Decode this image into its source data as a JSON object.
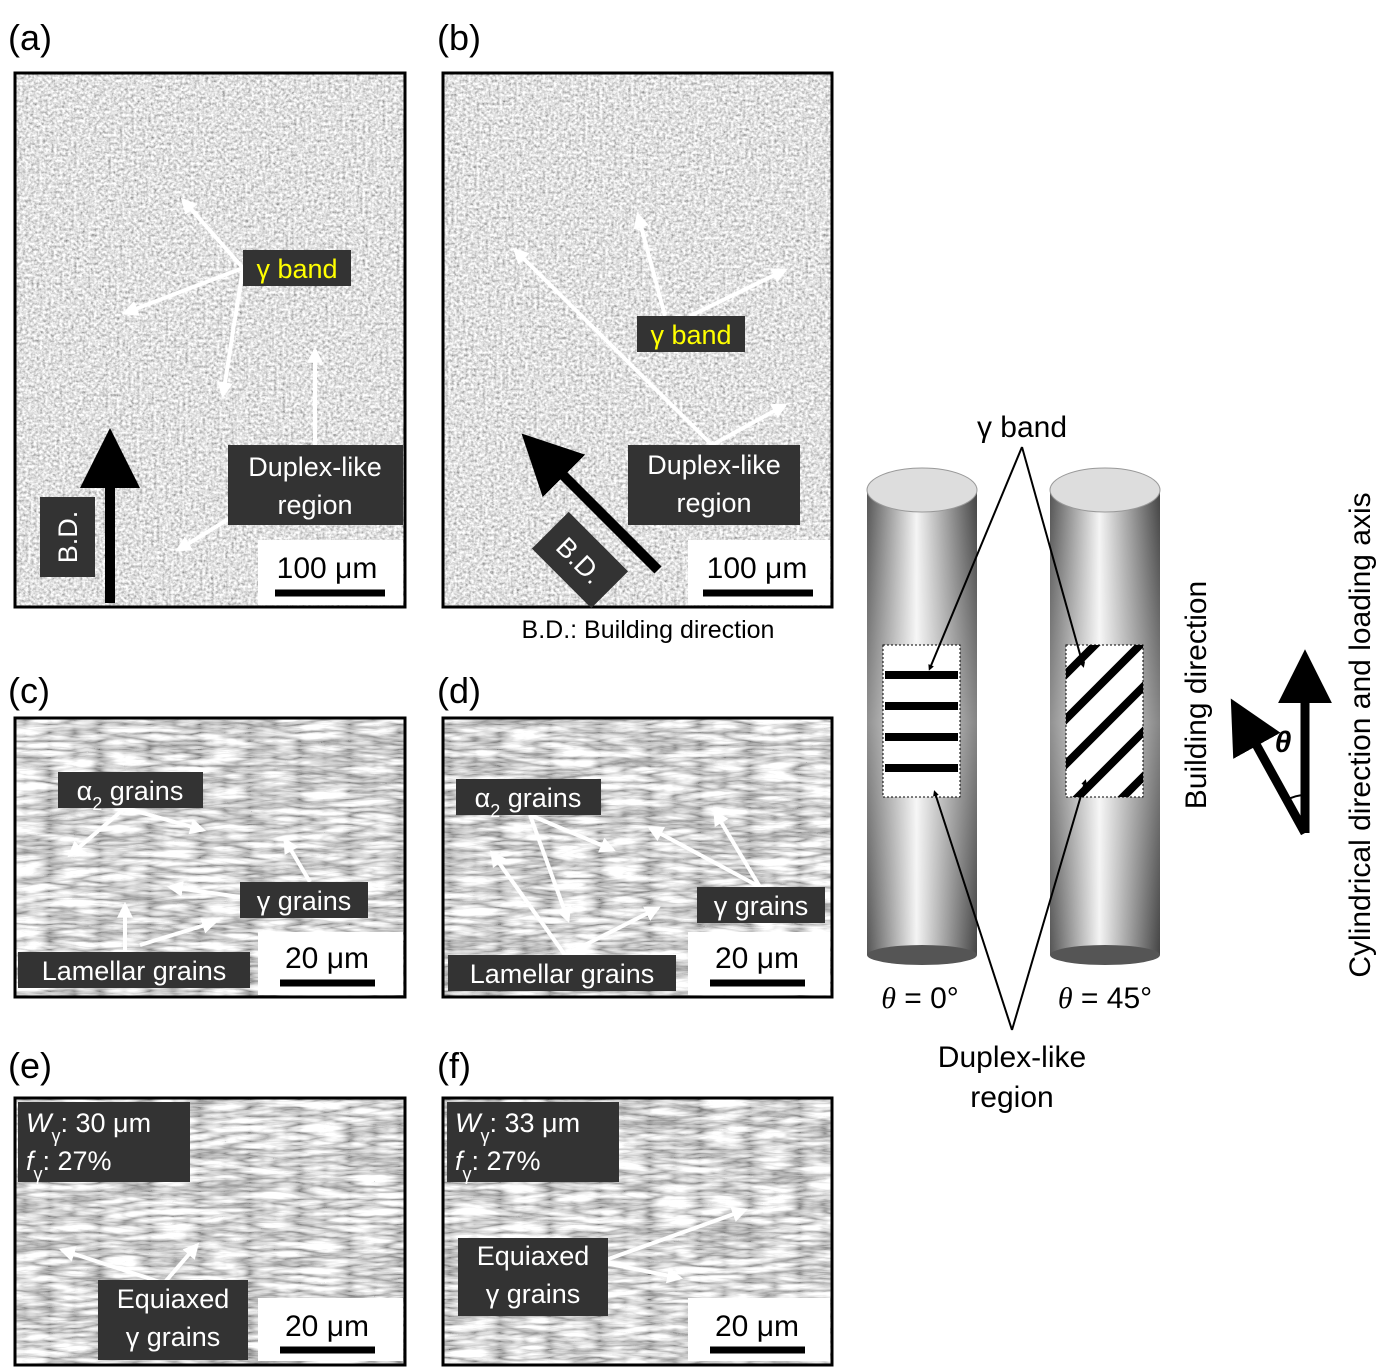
{
  "figure": {
    "note": "B.D.: Building direction",
    "panels": [
      {
        "label": "(a)",
        "scale_bar": "100 μm",
        "direction": "B.D.",
        "annotations": [
          "γ band",
          "Duplex-like",
          "region"
        ]
      },
      {
        "label": "(b)",
        "scale_bar": "100 μm",
        "direction": "B.D.",
        "annotations": [
          "γ band",
          "Duplex-like",
          "region"
        ]
      },
      {
        "label": "(c)",
        "scale_bar": "20 μm",
        "annotations": [
          {
            "symbol": "α",
            "sub": "2",
            "text": " grains"
          },
          "γ grains",
          "Lamellar grains"
        ]
      },
      {
        "label": "(d)",
        "scale_bar": "20 μm",
        "annotations": [
          {
            "symbol": "α",
            "sub": "2",
            "text": " grains"
          },
          "γ grains",
          "Lamellar grains"
        ]
      },
      {
        "label": "(e)",
        "scale_bar": "20 μm",
        "width": {
          "var": "W",
          "sub": "γ",
          "text": ": 30 μm"
        },
        "fraction": {
          "var": "f",
          "sub": "γ",
          "text": ": 27%"
        },
        "annotations": [
          "Equiaxed",
          "γ grains"
        ]
      },
      {
        "label": "(f)",
        "scale_bar": "20 μm",
        "width": {
          "var": "W",
          "sub": "γ",
          "text": ": 33 μm"
        },
        "fraction": {
          "var": "f",
          "sub": "γ",
          "text": ": 27%"
        },
        "annotations": [
          "Equiaxed",
          "γ grains"
        ]
      }
    ],
    "schematic": {
      "band_label": "γ band",
      "region_label": [
        "Duplex-like",
        "region"
      ],
      "cylinders": [
        {
          "var": "θ",
          "text": " = 0°"
        },
        {
          "var": "θ",
          "text": " = 45°"
        }
      ],
      "angle_symbol": "θ",
      "building_direction": "Building direction",
      "axis": "Cylindrical direction and loading axis"
    }
  }
}
